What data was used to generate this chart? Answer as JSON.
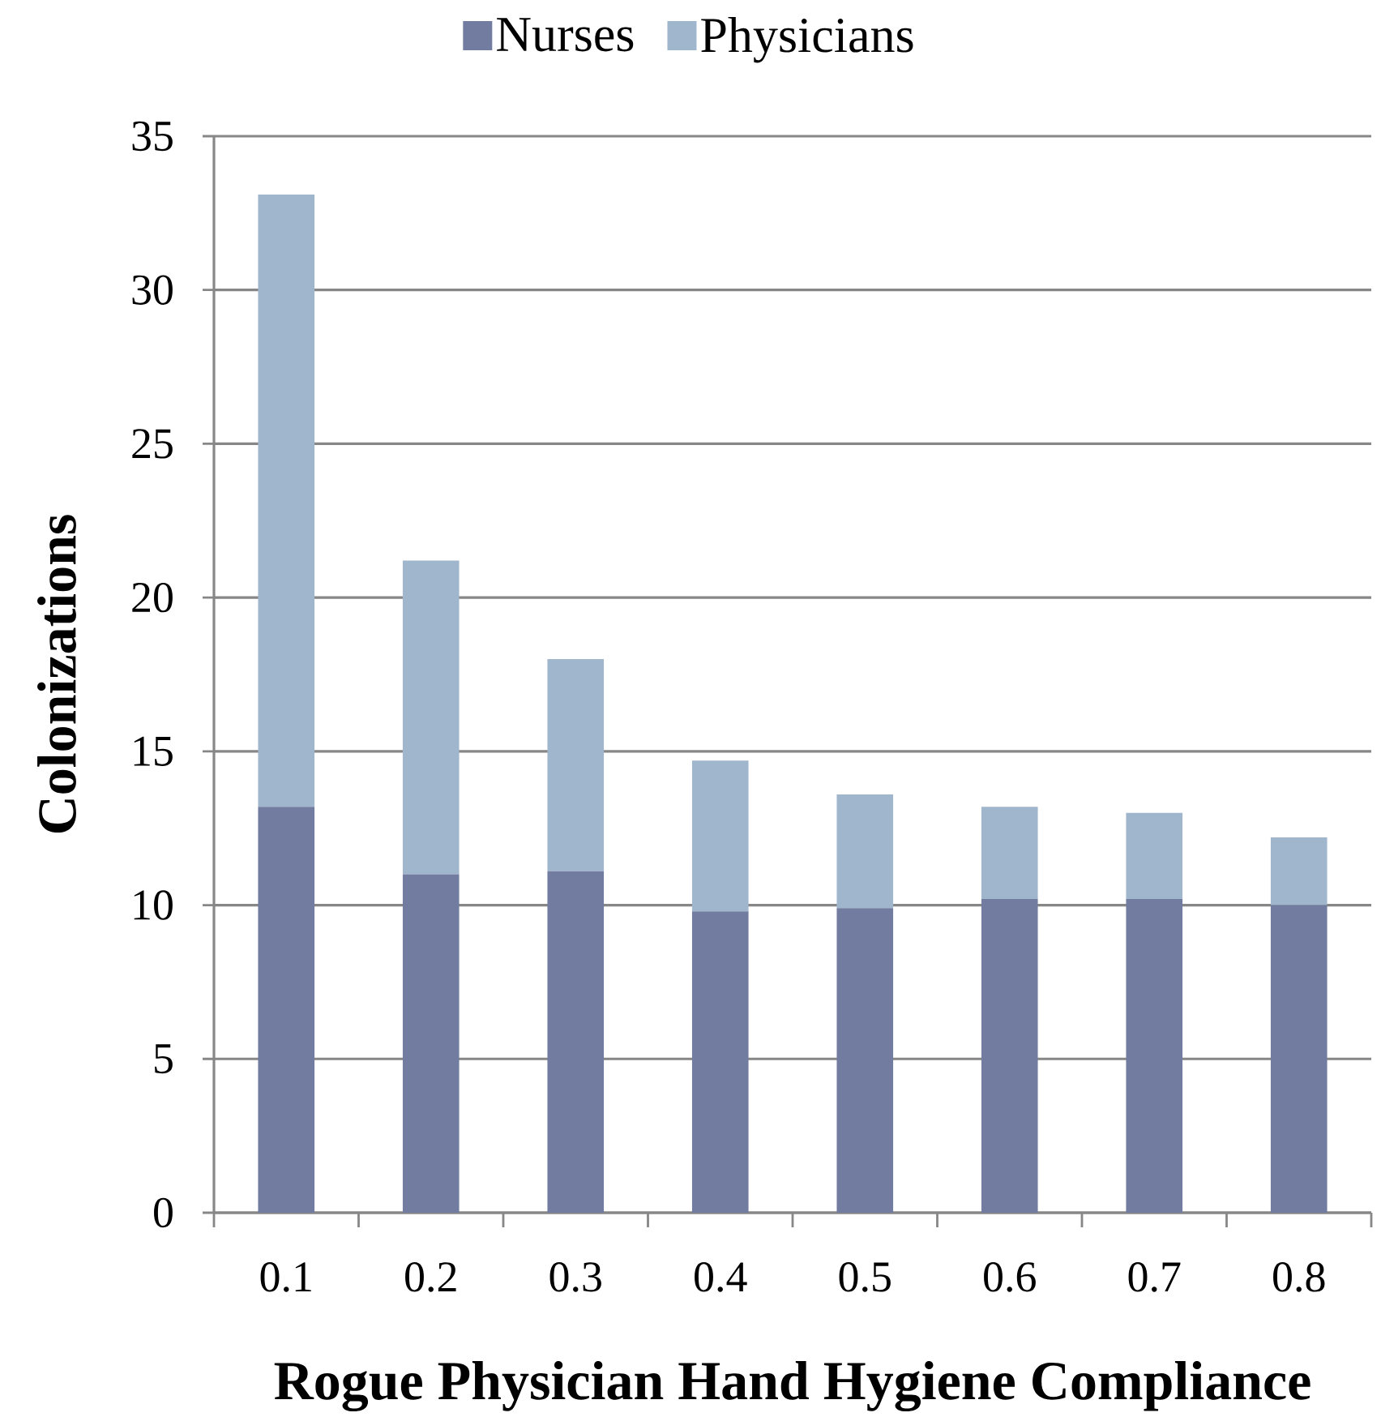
{
  "chart_data": {
    "type": "bar",
    "stacked": true,
    "xlabel": "Rogue Physician Hand Hygiene Compliance",
    "ylabel": "Colonizations",
    "categories": [
      "0.1",
      "0.2",
      "0.3",
      "0.4",
      "0.5",
      "0.6",
      "0.7",
      "0.8"
    ],
    "series": [
      {
        "name": "Nurses",
        "color": "#727ca0",
        "values": [
          13.2,
          11.0,
          11.1,
          9.8,
          9.9,
          10.2,
          10.2,
          10.0
        ]
      },
      {
        "name": "Physicians",
        "color": "#a0b6cc",
        "values": [
          19.9,
          10.2,
          6.9,
          4.9,
          3.7,
          3.0,
          2.8,
          2.2
        ]
      }
    ],
    "ylim": [
      0,
      35
    ],
    "yticks": [
      0,
      5,
      10,
      15,
      20,
      25,
      30,
      35
    ],
    "grid": "y",
    "legend": "top"
  }
}
